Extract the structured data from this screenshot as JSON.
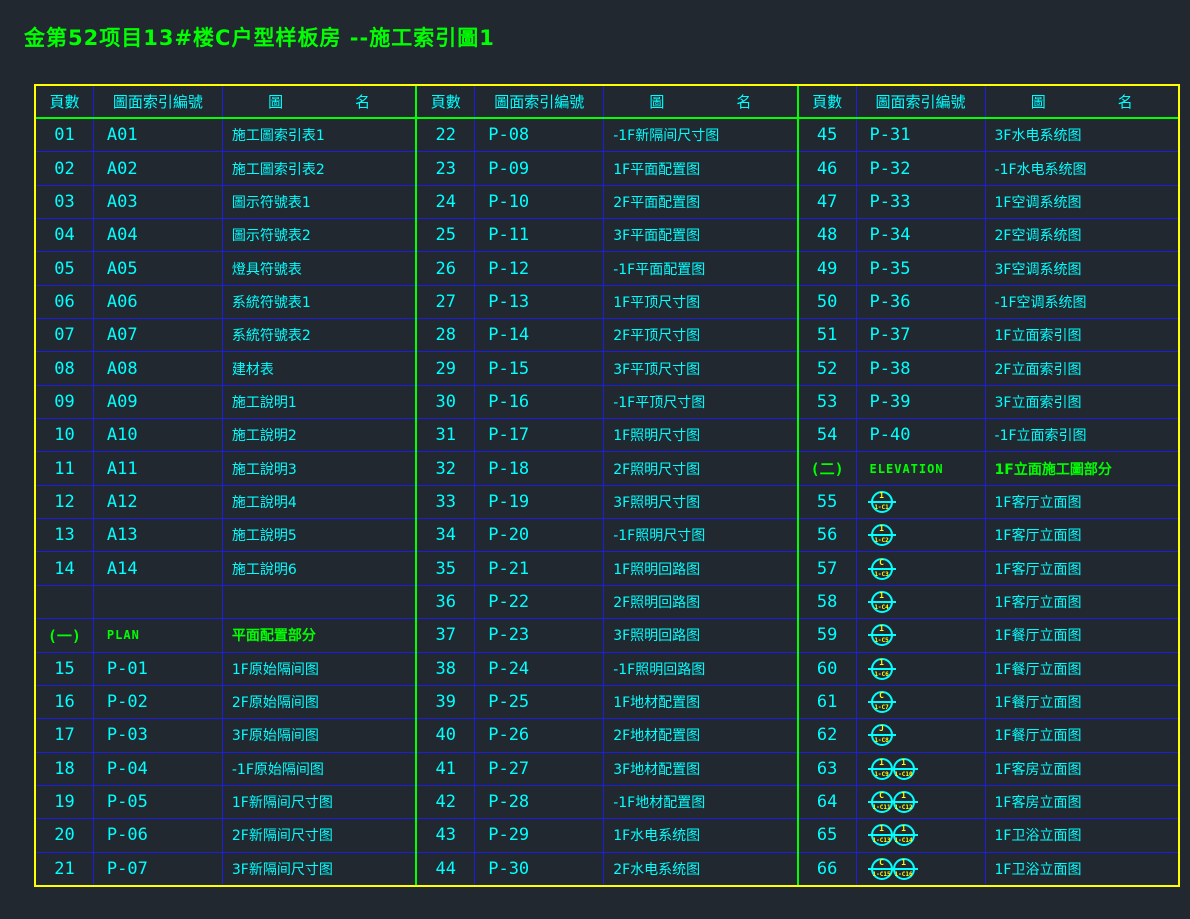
{
  "title": "金第52项目13#楼C户型样板房 --施工索引圖1",
  "colors": {
    "background": "#212830",
    "text_cyan": "#00ffff",
    "text_green": "#00ff00",
    "symbol_yellow": "#ffff00",
    "border_yellow": "#ffff00",
    "border_green": "#00ff00",
    "border_blue": "#1d1de0"
  },
  "header": {
    "page": "頁數",
    "index": "圖面索引編號",
    "name_left": "圖",
    "name_right": "名"
  },
  "tables": [
    {
      "rows": [
        {
          "type": "normal",
          "page": "01",
          "code": "A01",
          "name": "施工圖索引表1"
        },
        {
          "type": "normal",
          "page": "02",
          "code": "A02",
          "name": "施工圖索引表2"
        },
        {
          "type": "normal",
          "page": "03",
          "code": "A03",
          "name": "圖示符號表1"
        },
        {
          "type": "normal",
          "page": "04",
          "code": "A04",
          "name": "圖示符號表2"
        },
        {
          "type": "normal",
          "page": "05",
          "code": "A05",
          "name": "燈具符號表"
        },
        {
          "type": "normal",
          "page": "06",
          "code": "A06",
          "name": "系統符號表1"
        },
        {
          "type": "normal",
          "page": "07",
          "code": "A07",
          "name": "系統符號表2"
        },
        {
          "type": "normal",
          "page": "08",
          "code": "A08",
          "name": "建材表"
        },
        {
          "type": "normal",
          "page": "09",
          "code": "A09",
          "name": "施工說明1"
        },
        {
          "type": "normal",
          "page": "10",
          "code": "A10",
          "name": "施工說明2"
        },
        {
          "type": "normal",
          "page": "11",
          "code": "A11",
          "name": "施工說明3"
        },
        {
          "type": "normal",
          "page": "12",
          "code": "A12",
          "name": "施工說明4"
        },
        {
          "type": "normal",
          "page": "13",
          "code": "A13",
          "name": "施工說明5"
        },
        {
          "type": "normal",
          "page": "14",
          "code": "A14",
          "name": "施工說明6"
        },
        {
          "type": "empty",
          "page": "",
          "code": "",
          "name": ""
        },
        {
          "type": "section",
          "page": "(一)",
          "code": "PLAN",
          "name": "平面配置部分"
        },
        {
          "type": "normal",
          "page": "15",
          "code": "P-01",
          "name": "1F原始隔间图"
        },
        {
          "type": "normal",
          "page": "16",
          "code": "P-02",
          "name": "2F原始隔间图"
        },
        {
          "type": "normal",
          "page": "17",
          "code": "P-03",
          "name": "3F原始隔间图"
        },
        {
          "type": "normal",
          "page": "18",
          "code": "P-04",
          "name": "-1F原始隔间图"
        },
        {
          "type": "normal",
          "page": "19",
          "code": "P-05",
          "name": "1F新隔间尺寸图"
        },
        {
          "type": "normal",
          "page": "20",
          "code": "P-06",
          "name": "2F新隔间尺寸图"
        },
        {
          "type": "normal",
          "page": "21",
          "code": "P-07",
          "name": "3F新隔间尺寸图"
        }
      ]
    },
    {
      "rows": [
        {
          "type": "normal",
          "page": "22",
          "code": "P-08",
          "name": "-1F新隔间尺寸图"
        },
        {
          "type": "normal",
          "page": "23",
          "code": "P-09",
          "name": "1F平面配置图"
        },
        {
          "type": "normal",
          "page": "24",
          "code": "P-10",
          "name": "2F平面配置图"
        },
        {
          "type": "normal",
          "page": "25",
          "code": "P-11",
          "name": "3F平面配置图"
        },
        {
          "type": "normal",
          "page": "26",
          "code": "P-12",
          "name": "-1F平面配置图"
        },
        {
          "type": "normal",
          "page": "27",
          "code": "P-13",
          "name": "1F平顶尺寸图"
        },
        {
          "type": "normal",
          "page": "28",
          "code": "P-14",
          "name": "2F平顶尺寸图"
        },
        {
          "type": "normal",
          "page": "29",
          "code": "P-15",
          "name": "3F平顶尺寸图"
        },
        {
          "type": "normal",
          "page": "30",
          "code": "P-16",
          "name": "-1F平顶尺寸图"
        },
        {
          "type": "normal",
          "page": "31",
          "code": "P-17",
          "name": "1F照明尺寸图"
        },
        {
          "type": "normal",
          "page": "32",
          "code": "P-18",
          "name": "2F照明尺寸图"
        },
        {
          "type": "normal",
          "page": "33",
          "code": "P-19",
          "name": "3F照明尺寸图"
        },
        {
          "type": "normal",
          "page": "34",
          "code": "P-20",
          "name": "-1F照明尺寸图"
        },
        {
          "type": "normal",
          "page": "35",
          "code": "P-21",
          "name": "1F照明回路图"
        },
        {
          "type": "normal",
          "page": "36",
          "code": "P-22",
          "name": "2F照明回路图"
        },
        {
          "type": "normal",
          "page": "37",
          "code": "P-23",
          "name": "3F照明回路图"
        },
        {
          "type": "normal",
          "page": "38",
          "code": "P-24",
          "name": "-1F照明回路图"
        },
        {
          "type": "normal",
          "page": "39",
          "code": "P-25",
          "name": "1F地材配置图"
        },
        {
          "type": "normal",
          "page": "40",
          "code": "P-26",
          "name": "2F地材配置图"
        },
        {
          "type": "normal",
          "page": "41",
          "code": "P-27",
          "name": "3F地材配置图"
        },
        {
          "type": "normal",
          "page": "42",
          "code": "P-28",
          "name": "-1F地材配置图"
        },
        {
          "type": "normal",
          "page": "43",
          "code": "P-29",
          "name": "1F水电系统图"
        },
        {
          "type": "normal",
          "page": "44",
          "code": "P-30",
          "name": "2F水电系统图"
        }
      ]
    },
    {
      "rows": [
        {
          "type": "normal",
          "page": "45",
          "code": "P-31",
          "name": "3F水电系统图"
        },
        {
          "type": "normal",
          "page": "46",
          "code": "P-32",
          "name": "-1F水电系统图"
        },
        {
          "type": "normal",
          "page": "47",
          "code": "P-33",
          "name": "1F空调系统图"
        },
        {
          "type": "normal",
          "page": "48",
          "code": "P-34",
          "name": "2F空调系统图"
        },
        {
          "type": "normal",
          "page": "49",
          "code": "P-35",
          "name": "3F空调系统图"
        },
        {
          "type": "normal",
          "page": "50",
          "code": "P-36",
          "name": "-1F空调系统图"
        },
        {
          "type": "normal",
          "page": "51",
          "code": "P-37",
          "name": "1F立面索引图"
        },
        {
          "type": "normal",
          "page": "52",
          "code": "P-38",
          "name": "2F立面索引图"
        },
        {
          "type": "normal",
          "page": "53",
          "code": "P-39",
          "name": "3F立面索引图"
        },
        {
          "type": "normal",
          "page": "54",
          "code": "P-40",
          "name": "-1F立面索引图"
        },
        {
          "type": "section",
          "page": "(二)",
          "code": "ELEVATION",
          "name": "1F立面施工圖部分"
        },
        {
          "type": "symbol",
          "page": "55",
          "symbols": [
            {
              "top": "1",
              "bottom": "1-C1"
            }
          ],
          "name": "1F客厅立面图"
        },
        {
          "type": "symbol",
          "page": "56",
          "symbols": [
            {
              "top": "1",
              "bottom": "1-C2"
            }
          ],
          "name": "1F客厅立面图"
        },
        {
          "type": "symbol",
          "page": "57",
          "symbols": [
            {
              "top": "C",
              "bottom": "1-C3"
            }
          ],
          "name": "1F客厅立面图"
        },
        {
          "type": "symbol",
          "page": "58",
          "symbols": [
            {
              "top": "1",
              "bottom": "1-C4"
            }
          ],
          "name": "1F客厅立面图"
        },
        {
          "type": "symbol",
          "page": "59",
          "symbols": [
            {
              "top": "1",
              "bottom": "1-C5"
            }
          ],
          "name": "1F餐厅立面图"
        },
        {
          "type": "symbol",
          "page": "60",
          "symbols": [
            {
              "top": "1",
              "bottom": "1-C6"
            }
          ],
          "name": "1F餐厅立面图"
        },
        {
          "type": "symbol",
          "page": "61",
          "symbols": [
            {
              "top": "C",
              "bottom": "1-C7"
            }
          ],
          "name": "1F餐厅立面图"
        },
        {
          "type": "symbol",
          "page": "62",
          "symbols": [
            {
              "top": "J",
              "bottom": "1-C8"
            }
          ],
          "name": "1F餐厅立面图"
        },
        {
          "type": "symbol",
          "page": "63",
          "symbols": [
            {
              "top": "1",
              "bottom": "1-C9"
            },
            {
              "top": "1",
              "bottom": "1-C10"
            }
          ],
          "name": "1F客房立面图"
        },
        {
          "type": "symbol",
          "page": "64",
          "symbols": [
            {
              "top": "C",
              "bottom": "1-C11"
            },
            {
              "top": "1",
              "bottom": "1-C12"
            }
          ],
          "name": "1F客房立面图"
        },
        {
          "type": "symbol",
          "page": "65",
          "symbols": [
            {
              "top": "1",
              "bottom": "1-C13"
            },
            {
              "top": "1",
              "bottom": "1-C14"
            }
          ],
          "name": "1F卫浴立面图"
        },
        {
          "type": "symbol",
          "page": "66",
          "symbols": [
            {
              "top": "C",
              "bottom": "1-C15"
            },
            {
              "top": "1",
              "bottom": "1-C16"
            }
          ],
          "name": "1F卫浴立面图"
        }
      ]
    }
  ]
}
